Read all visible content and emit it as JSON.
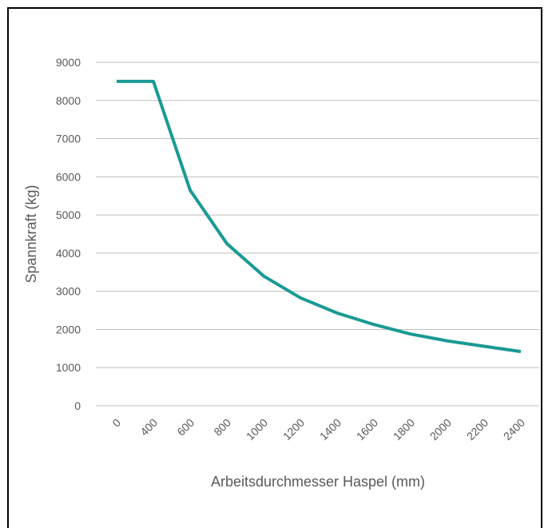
{
  "chart_data": {
    "type": "line",
    "xlabel": "Arbeitsdurchmesser Haspel (mm)",
    "ylabel": "Spannkraft  (kg)",
    "categories": [
      "0",
      "400",
      "600",
      "800",
      "1000",
      "1200",
      "1400",
      "1600",
      "1800",
      "2000",
      "2200",
      "2400"
    ],
    "ylim": [
      0,
      9000
    ],
    "yticks": [
      "0",
      "1000",
      "2000",
      "3000",
      "4000",
      "5000",
      "6000",
      "7000",
      "8000",
      "9000"
    ],
    "grid": true,
    "legend": "none",
    "series": [
      {
        "color": "#1a9a94",
        "values": [
          8500,
          8500,
          5650,
          4250,
          3400,
          2830,
          2430,
          2130,
          1880,
          1700,
          1560,
          1420
        ]
      }
    ]
  }
}
